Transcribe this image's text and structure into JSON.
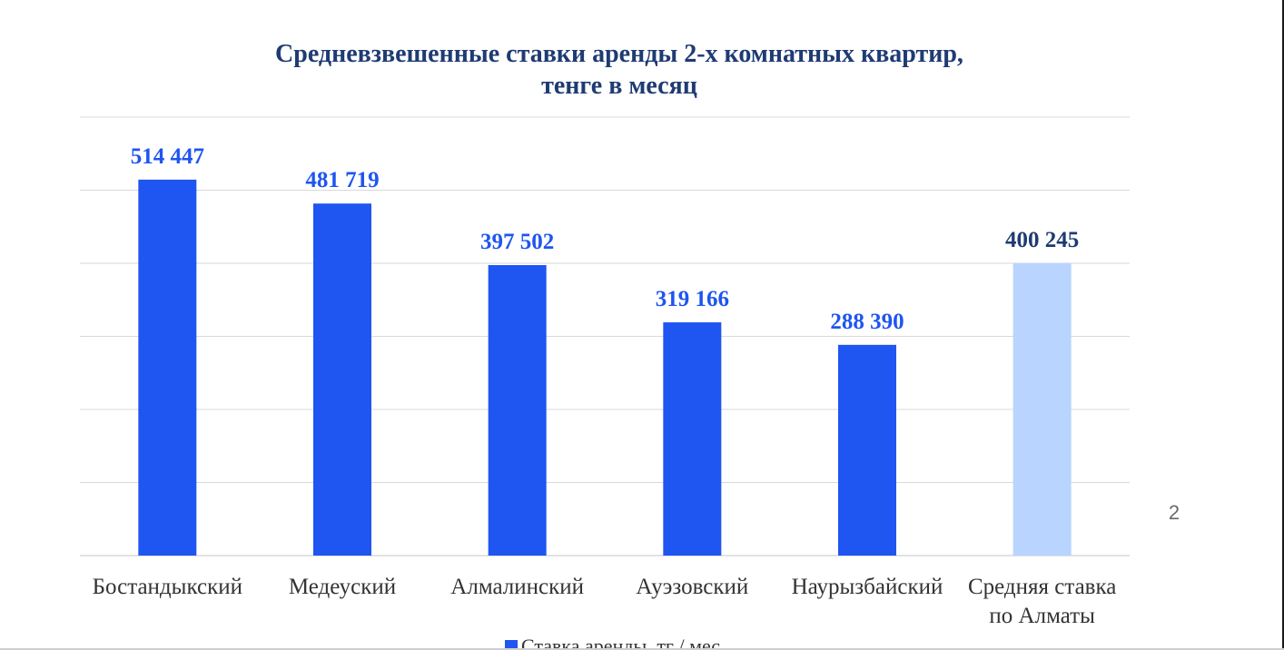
{
  "page_number": "2",
  "colors": {
    "bar": "#1f55f0",
    "average_bar": "#b9d4ff",
    "label": "#1f55f0",
    "average_label": "#1f3b73",
    "title": "#1f3b73",
    "axis_text": "#333333",
    "grid": "#d9d9d9"
  },
  "chart_data": {
    "type": "bar",
    "title_lines": [
      "Средневзвешенные ставки аренды 2-х комнатных квартир,",
      "тенге в месяц"
    ],
    "categories": [
      [
        "Бостандыкский"
      ],
      [
        "Медеуский"
      ],
      [
        "Алмалинский"
      ],
      [
        "Ауэзовский"
      ],
      [
        "Наурызбайский"
      ],
      [
        "Средняя ставка",
        "по Алматы"
      ]
    ],
    "series": [
      {
        "name": "Ставка аренды, тг / мес",
        "values": [
          514447,
          481719,
          397502,
          319166,
          288390,
          400245
        ],
        "labels": [
          "514 447",
          "481 719",
          "397 502",
          "319 166",
          "288 390",
          "400 245"
        ]
      }
    ],
    "highlight_index": 5,
    "ylim": [
      0,
      600000
    ],
    "grid": true,
    "gridline_step": 100000,
    "legend_position": "bottom"
  }
}
